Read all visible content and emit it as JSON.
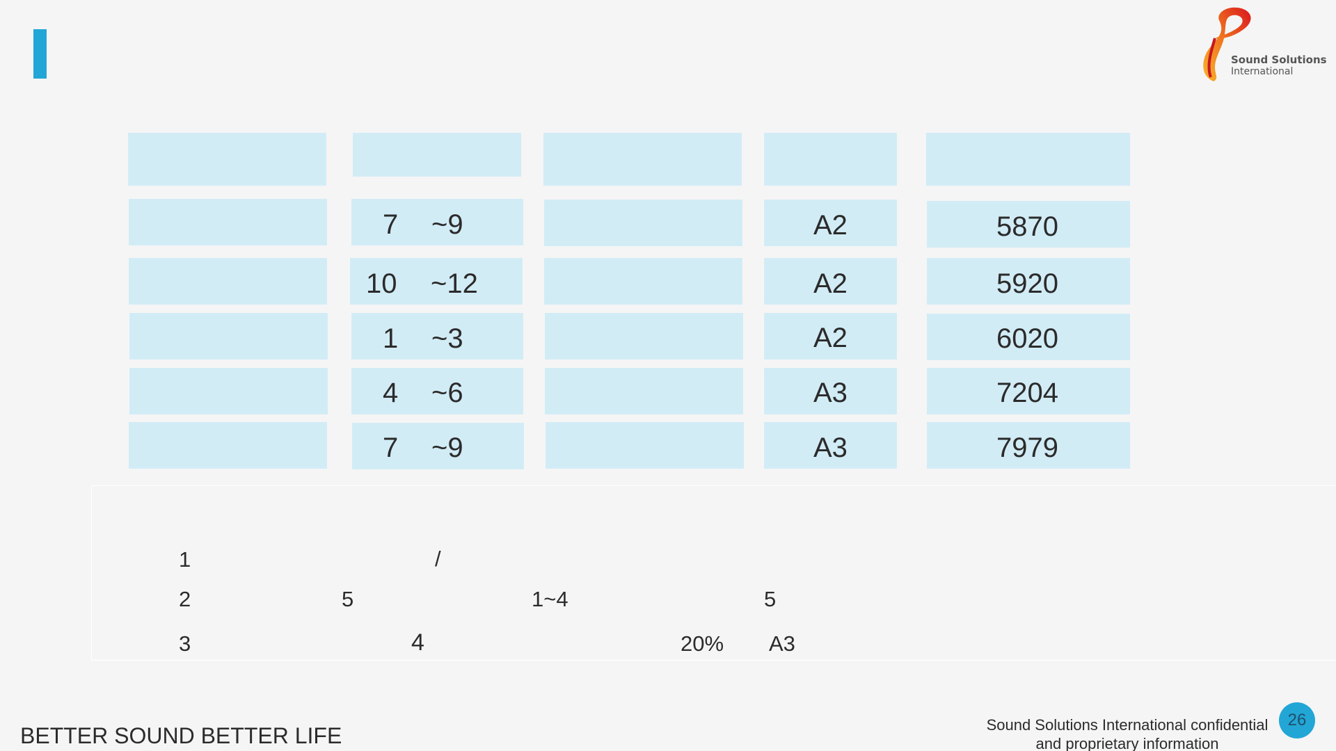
{
  "colors": {
    "accent": "#22a6d6",
    "cell_fill": "#d2ecf6",
    "page_badge": "#22a6d6",
    "background": "#f5f5f5"
  },
  "logo": {
    "line1": "Sound Solutions",
    "line2": "International"
  },
  "table": {
    "rows": [
      {
        "from": "7",
        "to": "~9",
        "grade": "A2",
        "value": "5870"
      },
      {
        "from": "10",
        "to": "~12",
        "grade": "A2",
        "value": "5920"
      },
      {
        "from": "1",
        "to": "~3",
        "grade": "A2",
        "value": "6020"
      },
      {
        "from": "4",
        "to": "~6",
        "grade": "A3",
        "value": "7204"
      },
      {
        "from": "7",
        "to": "~9",
        "grade": "A3",
        "value": "7979"
      }
    ]
  },
  "notes": {
    "n1": {
      "num": "1",
      "slash": "/"
    },
    "n2": {
      "num": "2",
      "a": "5",
      "b": "1~4",
      "c": "5"
    },
    "n3": {
      "num": "3",
      "a": "4",
      "pct": "20%",
      "grade": "A3"
    }
  },
  "footer": {
    "slogan": "BETTER SOUND BETTER LIFE",
    "confidential_line1": "Sound Solutions International confidential",
    "confidential_line2": "and proprietary information",
    "page_number": "26"
  }
}
